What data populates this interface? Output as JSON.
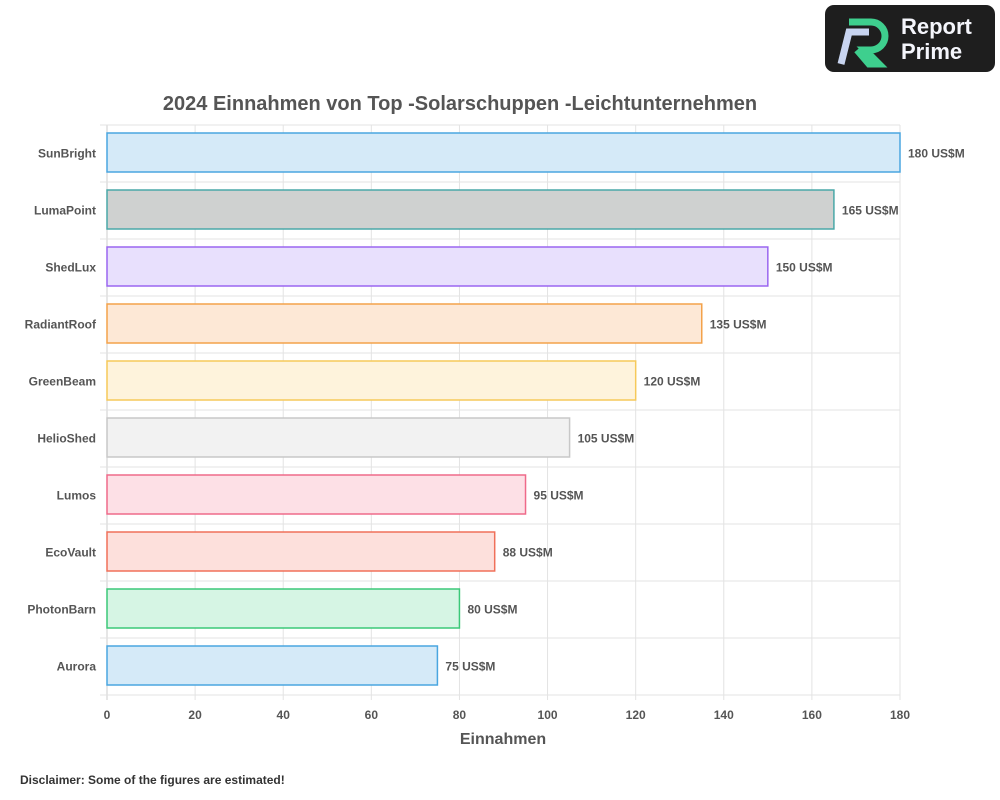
{
  "logo": {
    "line1": "Report",
    "line2": "Prime"
  },
  "disclaimer": "Disclaimer: Some of the figures are estimated!",
  "chart_data": {
    "type": "bar",
    "orientation": "horizontal",
    "title": "2024 Einnahmen von Top -Solarschuppen -Leichtunternehmen",
    "xlabel": "Einnahmen",
    "ylabel": "",
    "xlim": [
      0,
      180
    ],
    "xticks": [
      0,
      20,
      40,
      60,
      80,
      100,
      120,
      140,
      160,
      180
    ],
    "grid": true,
    "value_suffix": " US$M",
    "categories": [
      "SunBright",
      "LumaPoint",
      "ShedLux",
      "RadiantRoof",
      "GreenBeam",
      "HelioShed",
      "Lumos",
      "EcoVault",
      "PhotonBarn",
      "Aurora"
    ],
    "values": [
      180,
      165,
      150,
      135,
      120,
      105,
      95,
      88,
      80,
      75
    ],
    "fills": [
      "#d5eaf8",
      "#cfd1d0",
      "#e8e0fd",
      "#fde8d6",
      "#fef3dc",
      "#f2f2f2",
      "#fde0e6",
      "#fde0dc",
      "#d6f5e4",
      "#d5eaf8"
    ],
    "strokes": [
      "#4aa6e0",
      "#4aa8a8",
      "#9a66f0",
      "#f3a24a",
      "#f6c95a",
      "#c8c8c8",
      "#ef6a8a",
      "#f0705a",
      "#3cc878",
      "#4aa6e0"
    ]
  }
}
